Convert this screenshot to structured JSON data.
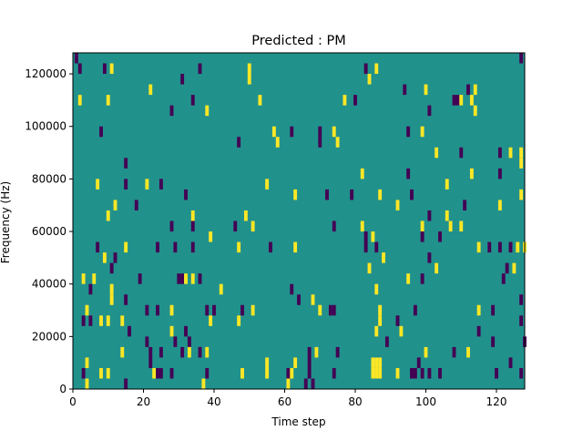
{
  "chart_data": {
    "type": "heatmap",
    "title": "Predicted : PM",
    "xlabel": "Time step",
    "ylabel": "Frequency (Hz)",
    "xlim": [
      0,
      128
    ],
    "ylim": [
      0,
      128000
    ],
    "x_ticks": [
      0,
      20,
      40,
      60,
      80,
      100,
      120
    ],
    "y_ticks": [
      0,
      20000,
      40000,
      60000,
      80000,
      100000,
      120000
    ],
    "x_tick_labels": [
      "0",
      "20",
      "40",
      "60",
      "80",
      "100",
      "120"
    ],
    "y_tick_labels": [
      "0",
      "20000",
      "40000",
      "60000",
      "80000",
      "100000",
      "120000"
    ],
    "grid": false,
    "legend": "none",
    "cell_height_hz": 4000,
    "colors": {
      "background": "#21918c",
      "low": "#440154",
      "high": "#fde725"
    },
    "cells": [
      {
        "x": 1,
        "y": 126000,
        "v": "low"
      },
      {
        "x": 2,
        "y": 122000,
        "v": "low"
      },
      {
        "x": 9,
        "y": 122000,
        "v": "low"
      },
      {
        "x": 11,
        "y": 122000,
        "v": "high"
      },
      {
        "x": 31,
        "y": 118000,
        "v": "low"
      },
      {
        "x": 36,
        "y": 122000,
        "v": "low"
      },
      {
        "x": 50,
        "y": 122000,
        "v": "high"
      },
      {
        "x": 50,
        "y": 118000,
        "v": "high"
      },
      {
        "x": 83,
        "y": 122000,
        "v": "low"
      },
      {
        "x": 86,
        "y": 122000,
        "v": "high"
      },
      {
        "x": 84,
        "y": 118000,
        "v": "high"
      },
      {
        "x": 127,
        "y": 126000,
        "v": "low"
      },
      {
        "x": 2,
        "y": 110000,
        "v": "high"
      },
      {
        "x": 10,
        "y": 110000,
        "v": "high"
      },
      {
        "x": 22,
        "y": 114000,
        "v": "high"
      },
      {
        "x": 34,
        "y": 110000,
        "v": "low"
      },
      {
        "x": 28,
        "y": 106000,
        "v": "low"
      },
      {
        "x": 38,
        "y": 106000,
        "v": "high"
      },
      {
        "x": 53,
        "y": 110000,
        "v": "high"
      },
      {
        "x": 77,
        "y": 110000,
        "v": "high"
      },
      {
        "x": 80,
        "y": 110000,
        "v": "low"
      },
      {
        "x": 94,
        "y": 114000,
        "v": "low"
      },
      {
        "x": 100,
        "y": 114000,
        "v": "high"
      },
      {
        "x": 101,
        "y": 106000,
        "v": "low"
      },
      {
        "x": 108,
        "y": 110000,
        "v": "low"
      },
      {
        "x": 109,
        "y": 110000,
        "v": "low"
      },
      {
        "x": 110,
        "y": 110000,
        "v": "high"
      },
      {
        "x": 112,
        "y": 114000,
        "v": "low"
      },
      {
        "x": 113,
        "y": 110000,
        "v": "high"
      },
      {
        "x": 114,
        "y": 114000,
        "v": "high"
      },
      {
        "x": 114,
        "y": 106000,
        "v": "high"
      },
      {
        "x": 8,
        "y": 98000,
        "v": "low"
      },
      {
        "x": 47,
        "y": 94000,
        "v": "low"
      },
      {
        "x": 57,
        "y": 98000,
        "v": "high"
      },
      {
        "x": 58,
        "y": 94000,
        "v": "high"
      },
      {
        "x": 62,
        "y": 98000,
        "v": "low"
      },
      {
        "x": 70,
        "y": 98000,
        "v": "low"
      },
      {
        "x": 70,
        "y": 94000,
        "v": "low"
      },
      {
        "x": 74,
        "y": 98000,
        "v": "high"
      },
      {
        "x": 75,
        "y": 94000,
        "v": "high"
      },
      {
        "x": 95,
        "y": 98000,
        "v": "low"
      },
      {
        "x": 99,
        "y": 98000,
        "v": "high"
      },
      {
        "x": 103,
        "y": 90000,
        "v": "high"
      },
      {
        "x": 110,
        "y": 90000,
        "v": "low"
      },
      {
        "x": 121,
        "y": 90000,
        "v": "low"
      },
      {
        "x": 124,
        "y": 90000,
        "v": "high"
      },
      {
        "x": 127,
        "y": 90000,
        "v": "high"
      },
      {
        "x": 127,
        "y": 86000,
        "v": "high"
      },
      {
        "x": 15,
        "y": 86000,
        "v": "low"
      },
      {
        "x": 7,
        "y": 78000,
        "v": "high"
      },
      {
        "x": 15,
        "y": 78000,
        "v": "low"
      },
      {
        "x": 21,
        "y": 78000,
        "v": "high"
      },
      {
        "x": 25,
        "y": 78000,
        "v": "low"
      },
      {
        "x": 32,
        "y": 74000,
        "v": "low"
      },
      {
        "x": 18,
        "y": 70000,
        "v": "low"
      },
      {
        "x": 12,
        "y": 70000,
        "v": "high"
      },
      {
        "x": 10,
        "y": 66000,
        "v": "high"
      },
      {
        "x": 55,
        "y": 78000,
        "v": "high"
      },
      {
        "x": 63,
        "y": 74000,
        "v": "high"
      },
      {
        "x": 72,
        "y": 74000,
        "v": "low"
      },
      {
        "x": 79,
        "y": 74000,
        "v": "low"
      },
      {
        "x": 82,
        "y": 82000,
        "v": "high"
      },
      {
        "x": 87,
        "y": 74000,
        "v": "high"
      },
      {
        "x": 92,
        "y": 70000,
        "v": "high"
      },
      {
        "x": 95,
        "y": 82000,
        "v": "low"
      },
      {
        "x": 96,
        "y": 74000,
        "v": "low"
      },
      {
        "x": 106,
        "y": 78000,
        "v": "high"
      },
      {
        "x": 111,
        "y": 70000,
        "v": "low"
      },
      {
        "x": 113,
        "y": 82000,
        "v": "high"
      },
      {
        "x": 121,
        "y": 82000,
        "v": "low"
      },
      {
        "x": 121,
        "y": 70000,
        "v": "high"
      },
      {
        "x": 127,
        "y": 74000,
        "v": "high"
      },
      {
        "x": 28,
        "y": 62000,
        "v": "low"
      },
      {
        "x": 34,
        "y": 66000,
        "v": "high"
      },
      {
        "x": 34,
        "y": 62000,
        "v": "low"
      },
      {
        "x": 39,
        "y": 58000,
        "v": "high"
      },
      {
        "x": 46,
        "y": 62000,
        "v": "low"
      },
      {
        "x": 49,
        "y": 66000,
        "v": "high"
      },
      {
        "x": 51,
        "y": 62000,
        "v": "high"
      },
      {
        "x": 74,
        "y": 62000,
        "v": "low"
      },
      {
        "x": 82,
        "y": 62000,
        "v": "high"
      },
      {
        "x": 85,
        "y": 58000,
        "v": "high"
      },
      {
        "x": 99,
        "y": 62000,
        "v": "high"
      },
      {
        "x": 101,
        "y": 66000,
        "v": "low"
      },
      {
        "x": 106,
        "y": 66000,
        "v": "high"
      },
      {
        "x": 107,
        "y": 62000,
        "v": "high"
      },
      {
        "x": 110,
        "y": 62000,
        "v": "high"
      },
      {
        "x": 104,
        "y": 58000,
        "v": "low"
      },
      {
        "x": 99,
        "y": 58000,
        "v": "low"
      },
      {
        "x": 7,
        "y": 54000,
        "v": "low"
      },
      {
        "x": 9,
        "y": 50000,
        "v": "high"
      },
      {
        "x": 12,
        "y": 50000,
        "v": "low"
      },
      {
        "x": 15,
        "y": 54000,
        "v": "high"
      },
      {
        "x": 24,
        "y": 54000,
        "v": "low"
      },
      {
        "x": 29,
        "y": 54000,
        "v": "low"
      },
      {
        "x": 34,
        "y": 54000,
        "v": "low"
      },
      {
        "x": 47,
        "y": 54000,
        "v": "high"
      },
      {
        "x": 56,
        "y": 54000,
        "v": "low"
      },
      {
        "x": 63,
        "y": 54000,
        "v": "high"
      },
      {
        "x": 83,
        "y": 58000,
        "v": "low"
      },
      {
        "x": 83,
        "y": 54000,
        "v": "low"
      },
      {
        "x": 86,
        "y": 54000,
        "v": "low"
      },
      {
        "x": 88,
        "y": 50000,
        "v": "high"
      },
      {
        "x": 101,
        "y": 50000,
        "v": "low"
      },
      {
        "x": 115,
        "y": 54000,
        "v": "high"
      },
      {
        "x": 118,
        "y": 54000,
        "v": "low"
      },
      {
        "x": 121,
        "y": 54000,
        "v": "low"
      },
      {
        "x": 124,
        "y": 54000,
        "v": "low"
      },
      {
        "x": 126,
        "y": 54000,
        "v": "high"
      },
      {
        "x": 128,
        "y": 54000,
        "v": "high"
      },
      {
        "x": 3,
        "y": 42000,
        "v": "high"
      },
      {
        "x": 5,
        "y": 38000,
        "v": "low"
      },
      {
        "x": 6,
        "y": 42000,
        "v": "high"
      },
      {
        "x": 11,
        "y": 46000,
        "v": "low"
      },
      {
        "x": 11,
        "y": 38000,
        "v": "high"
      },
      {
        "x": 11,
        "y": 34000,
        "v": "high"
      },
      {
        "x": 15,
        "y": 34000,
        "v": "low"
      },
      {
        "x": 19,
        "y": 42000,
        "v": "low"
      },
      {
        "x": 30,
        "y": 42000,
        "v": "low"
      },
      {
        "x": 31,
        "y": 42000,
        "v": "low"
      },
      {
        "x": 32,
        "y": 42000,
        "v": "high"
      },
      {
        "x": 34,
        "y": 42000,
        "v": "high"
      },
      {
        "x": 36,
        "y": 42000,
        "v": "low"
      },
      {
        "x": 42,
        "y": 38000,
        "v": "high"
      },
      {
        "x": 62,
        "y": 38000,
        "v": "low"
      },
      {
        "x": 64,
        "y": 34000,
        "v": "low"
      },
      {
        "x": 68,
        "y": 34000,
        "v": "high"
      },
      {
        "x": 84,
        "y": 46000,
        "v": "high"
      },
      {
        "x": 86,
        "y": 38000,
        "v": "high"
      },
      {
        "x": 95,
        "y": 42000,
        "v": "high"
      },
      {
        "x": 99,
        "y": 42000,
        "v": "low"
      },
      {
        "x": 103,
        "y": 46000,
        "v": "high"
      },
      {
        "x": 122,
        "y": 42000,
        "v": "low"
      },
      {
        "x": 123,
        "y": 46000,
        "v": "low"
      },
      {
        "x": 125,
        "y": 46000,
        "v": "high"
      },
      {
        "x": 4,
        "y": 30000,
        "v": "high"
      },
      {
        "x": 3,
        "y": 26000,
        "v": "low"
      },
      {
        "x": 5,
        "y": 26000,
        "v": "low"
      },
      {
        "x": 8,
        "y": 26000,
        "v": "high"
      },
      {
        "x": 10,
        "y": 26000,
        "v": "high"
      },
      {
        "x": 14,
        "y": 26000,
        "v": "high"
      },
      {
        "x": 16,
        "y": 22000,
        "v": "low"
      },
      {
        "x": 21,
        "y": 30000,
        "v": "low"
      },
      {
        "x": 24,
        "y": 30000,
        "v": "low"
      },
      {
        "x": 28,
        "y": 30000,
        "v": "high"
      },
      {
        "x": 28,
        "y": 22000,
        "v": "high"
      },
      {
        "x": 32,
        "y": 22000,
        "v": "low"
      },
      {
        "x": 38,
        "y": 30000,
        "v": "low"
      },
      {
        "x": 39,
        "y": 26000,
        "v": "high"
      },
      {
        "x": 40,
        "y": 30000,
        "v": "low"
      },
      {
        "x": 48,
        "y": 30000,
        "v": "low"
      },
      {
        "x": 47,
        "y": 26000,
        "v": "high"
      },
      {
        "x": 51,
        "y": 30000,
        "v": "high"
      },
      {
        "x": 70,
        "y": 30000,
        "v": "high"
      },
      {
        "x": 73,
        "y": 30000,
        "v": "low"
      },
      {
        "x": 74,
        "y": 30000,
        "v": "low"
      },
      {
        "x": 87,
        "y": 30000,
        "v": "high"
      },
      {
        "x": 87,
        "y": 26000,
        "v": "high"
      },
      {
        "x": 86,
        "y": 22000,
        "v": "high"
      },
      {
        "x": 92,
        "y": 26000,
        "v": "low"
      },
      {
        "x": 97,
        "y": 30000,
        "v": "low"
      },
      {
        "x": 93,
        "y": 22000,
        "v": "high"
      },
      {
        "x": 115,
        "y": 30000,
        "v": "high"
      },
      {
        "x": 115,
        "y": 22000,
        "v": "low"
      },
      {
        "x": 119,
        "y": 30000,
        "v": "low"
      },
      {
        "x": 127,
        "y": 34000,
        "v": "low"
      },
      {
        "x": 127,
        "y": 26000,
        "v": "low"
      },
      {
        "x": 128,
        "y": 18000,
        "v": "low"
      },
      {
        "x": 21,
        "y": 18000,
        "v": "low"
      },
      {
        "x": 22,
        "y": 14000,
        "v": "low"
      },
      {
        "x": 22,
        "y": 10000,
        "v": "low"
      },
      {
        "x": 14,
        "y": 14000,
        "v": "high"
      },
      {
        "x": 25,
        "y": 14000,
        "v": "low"
      },
      {
        "x": 29,
        "y": 18000,
        "v": "low"
      },
      {
        "x": 31,
        "y": 14000,
        "v": "low"
      },
      {
        "x": 33,
        "y": 18000,
        "v": "low"
      },
      {
        "x": 33,
        "y": 14000,
        "v": "high"
      },
      {
        "x": 36,
        "y": 14000,
        "v": "low"
      },
      {
        "x": 38,
        "y": 14000,
        "v": "high"
      },
      {
        "x": 67,
        "y": 14000,
        "v": "low"
      },
      {
        "x": 69,
        "y": 14000,
        "v": "high"
      },
      {
        "x": 75,
        "y": 14000,
        "v": "low"
      },
      {
        "x": 89,
        "y": 18000,
        "v": "low"
      },
      {
        "x": 98,
        "y": 10000,
        "v": "low"
      },
      {
        "x": 100,
        "y": 14000,
        "v": "high"
      },
      {
        "x": 108,
        "y": 14000,
        "v": "low"
      },
      {
        "x": 112,
        "y": 14000,
        "v": "high"
      },
      {
        "x": 119,
        "y": 18000,
        "v": "low"
      },
      {
        "x": 124,
        "y": 10000,
        "v": "low"
      },
      {
        "x": 4,
        "y": 10000,
        "v": "high"
      },
      {
        "x": 3,
        "y": 6000,
        "v": "low"
      },
      {
        "x": 8,
        "y": 6000,
        "v": "high"
      },
      {
        "x": 10,
        "y": 6000,
        "v": "high"
      },
      {
        "x": 23,
        "y": 6000,
        "v": "high"
      },
      {
        "x": 24,
        "y": 6000,
        "v": "low"
      },
      {
        "x": 25,
        "y": 6000,
        "v": "low"
      },
      {
        "x": 28,
        "y": 6000,
        "v": "low"
      },
      {
        "x": 38,
        "y": 6000,
        "v": "low"
      },
      {
        "x": 48,
        "y": 6000,
        "v": "high"
      },
      {
        "x": 55,
        "y": 10000,
        "v": "high"
      },
      {
        "x": 55,
        "y": 6000,
        "v": "high"
      },
      {
        "x": 61,
        "y": 6000,
        "v": "low"
      },
      {
        "x": 63,
        "y": 10000,
        "v": "high"
      },
      {
        "x": 62,
        "y": 6000,
        "v": "high"
      },
      {
        "x": 61,
        "y": 2000,
        "v": "high"
      },
      {
        "x": 67,
        "y": 10000,
        "v": "low"
      },
      {
        "x": 67,
        "y": 6000,
        "v": "low"
      },
      {
        "x": 66,
        "y": 2000,
        "v": "low"
      },
      {
        "x": 68,
        "y": 2000,
        "v": "low"
      },
      {
        "x": 74,
        "y": 6000,
        "v": "low"
      },
      {
        "x": 85,
        "y": 10000,
        "v": "high"
      },
      {
        "x": 86,
        "y": 10000,
        "v": "high"
      },
      {
        "x": 87,
        "y": 10000,
        "v": "high"
      },
      {
        "x": 85,
        "y": 6000,
        "v": "high"
      },
      {
        "x": 86,
        "y": 6000,
        "v": "high"
      },
      {
        "x": 87,
        "y": 6000,
        "v": "high"
      },
      {
        "x": 92,
        "y": 6000,
        "v": "high"
      },
      {
        "x": 96,
        "y": 6000,
        "v": "low"
      },
      {
        "x": 97,
        "y": 6000,
        "v": "low"
      },
      {
        "x": 99,
        "y": 6000,
        "v": "low"
      },
      {
        "x": 101,
        "y": 6000,
        "v": "low"
      },
      {
        "x": 104,
        "y": 6000,
        "v": "low"
      },
      {
        "x": 120,
        "y": 6000,
        "v": "low"
      },
      {
        "x": 127,
        "y": 6000,
        "v": "low"
      },
      {
        "x": 4,
        "y": 2000,
        "v": "high"
      },
      {
        "x": 15,
        "y": 2000,
        "v": "low"
      },
      {
        "x": 37,
        "y": 2000,
        "v": "high"
      }
    ]
  }
}
